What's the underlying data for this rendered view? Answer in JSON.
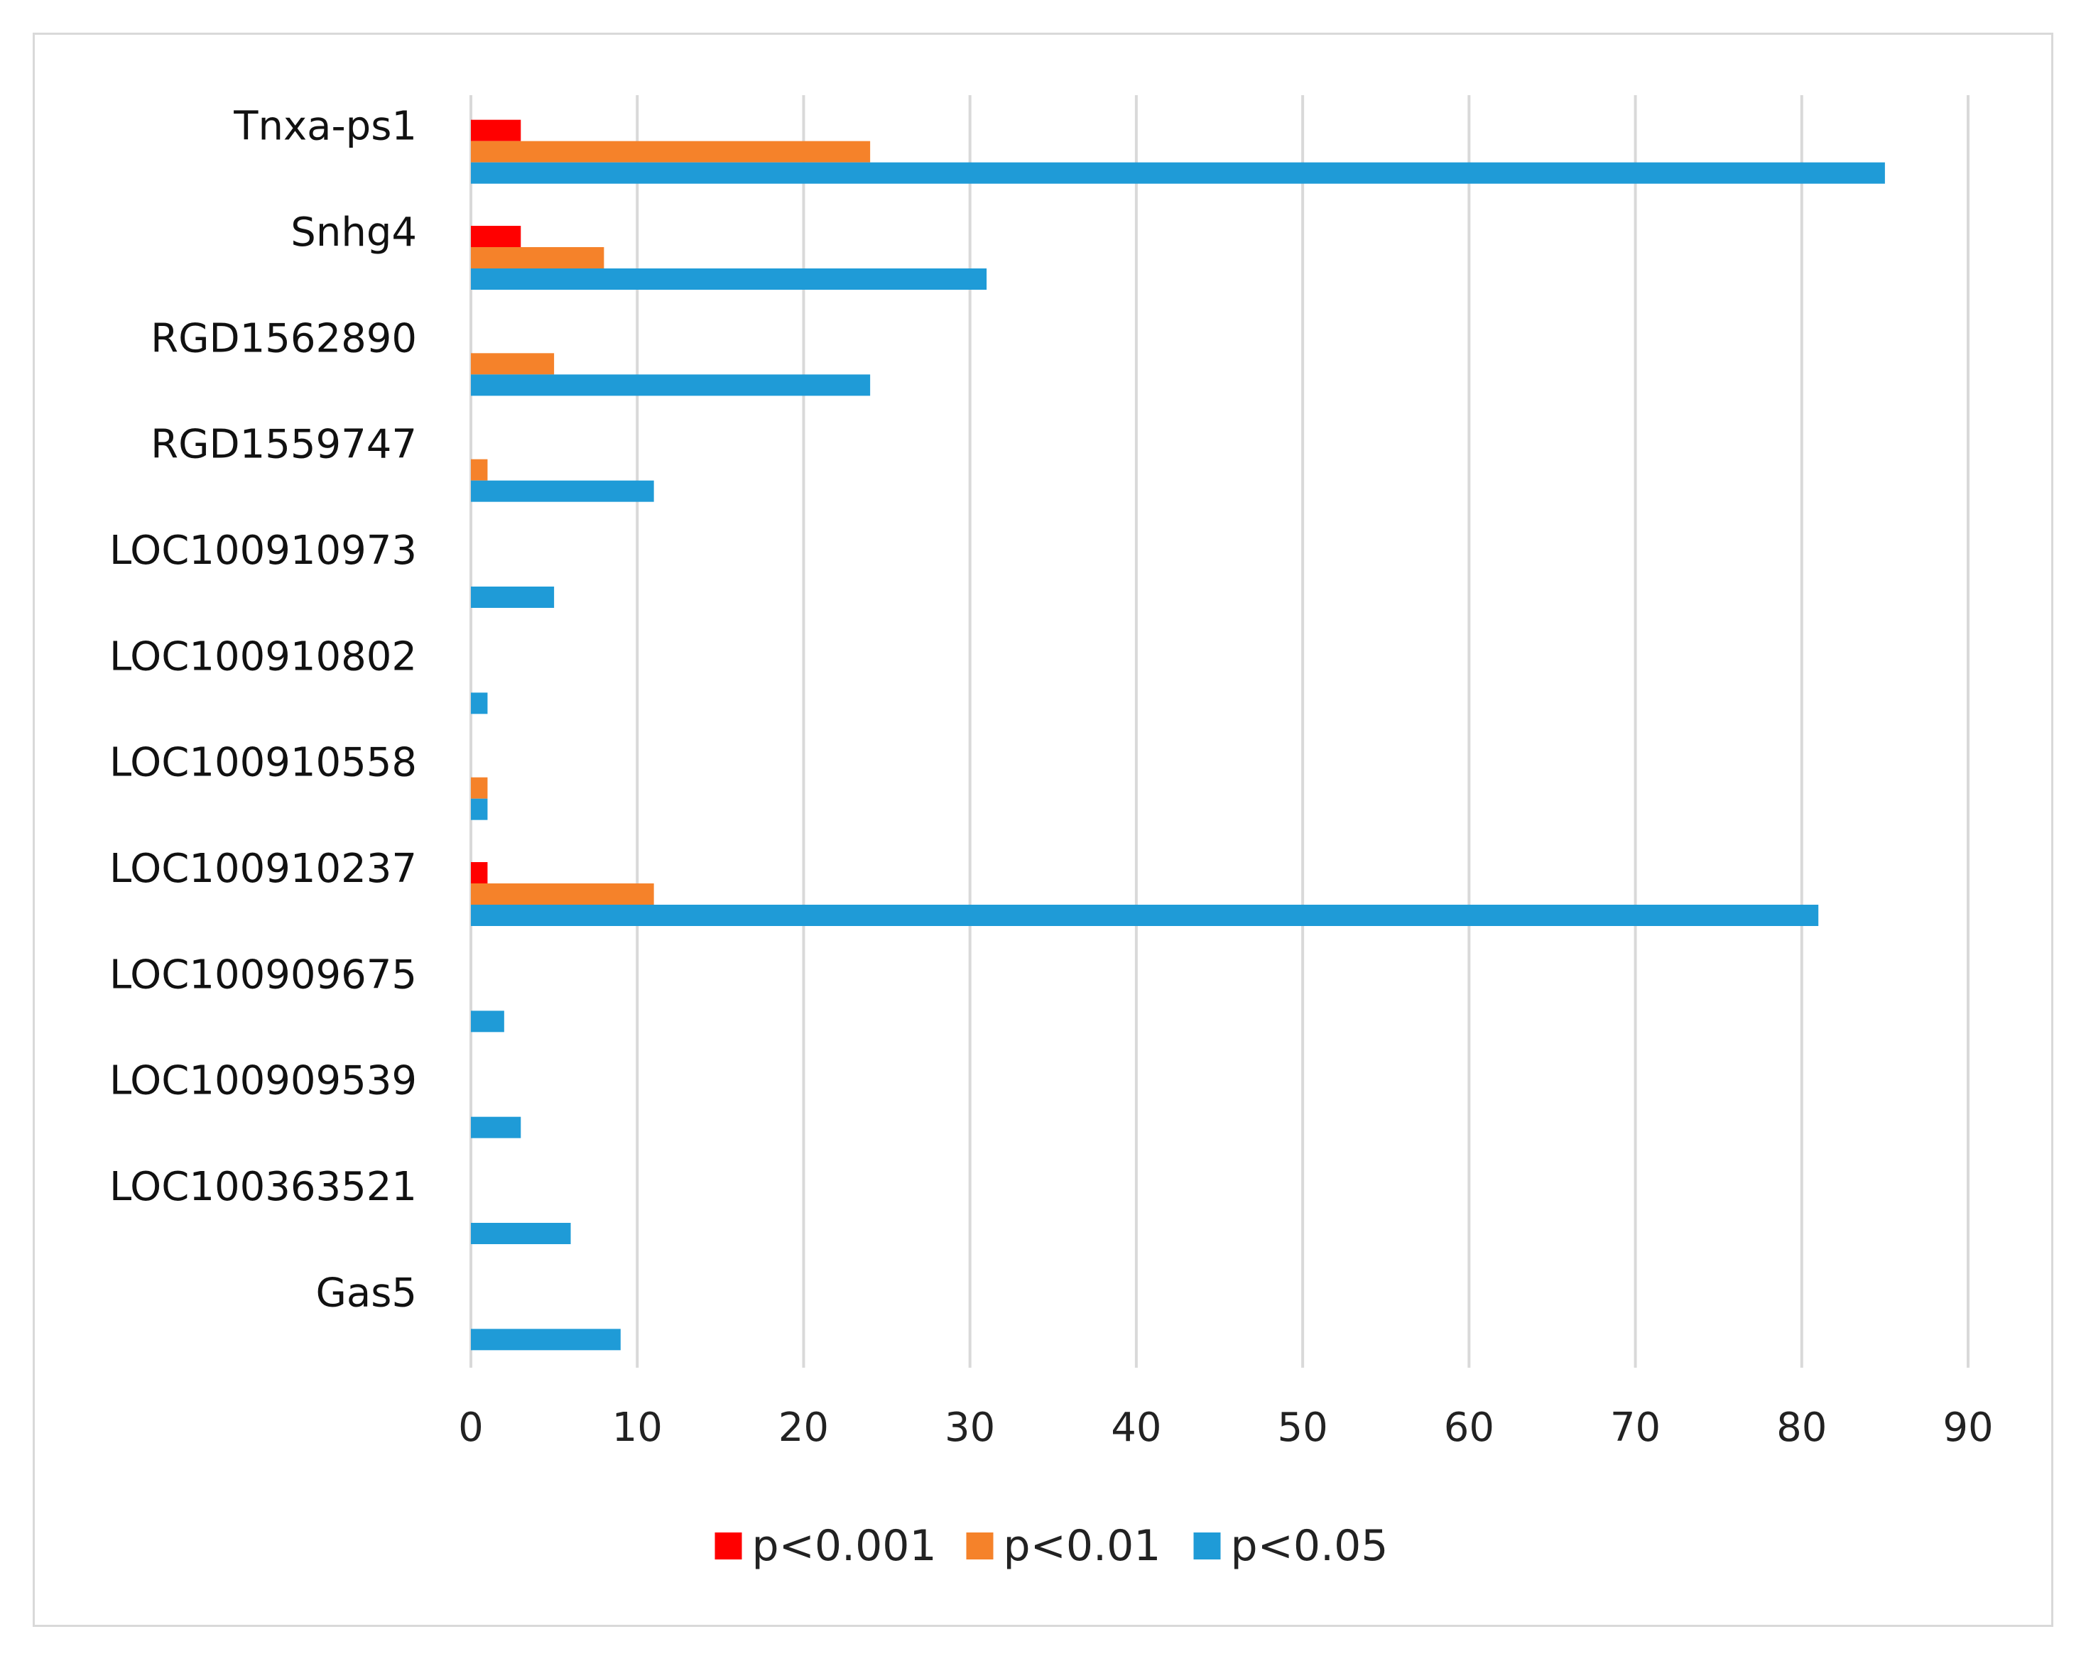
{
  "chart_data": {
    "type": "bar",
    "orientation": "horizontal",
    "title": "",
    "xlabel": "",
    "ylabel": "",
    "xlim": [
      0,
      90
    ],
    "x_ticks": [
      0,
      10,
      20,
      30,
      40,
      50,
      60,
      70,
      80,
      90
    ],
    "grid": true,
    "legend_position": "bottom",
    "categories": [
      "Tnxa-ps1",
      "Snhg4",
      "RGD1562890",
      "RGD1559747",
      "LOC100910973",
      "LOC100910802",
      "LOC100910558",
      "LOC100910237",
      "LOC100909675",
      "LOC100909539",
      "LOC100363521",
      "Gas5"
    ],
    "series": [
      {
        "name": "p<0.001",
        "color": "#ff0000",
        "values": [
          3,
          3,
          0,
          0,
          0,
          0,
          0,
          1,
          0,
          0,
          0,
          0
        ]
      },
      {
        "name": "p<0.01",
        "color": "#f5822a",
        "values": [
          24,
          8,
          5,
          1,
          0,
          0,
          1,
          11,
          0,
          0,
          0,
          0
        ]
      },
      {
        "name": "p<0.05",
        "color": "#1f9bd7",
        "values": [
          85,
          31,
          24,
          11,
          5,
          1,
          1,
          81,
          2,
          3,
          6,
          9
        ]
      }
    ]
  }
}
